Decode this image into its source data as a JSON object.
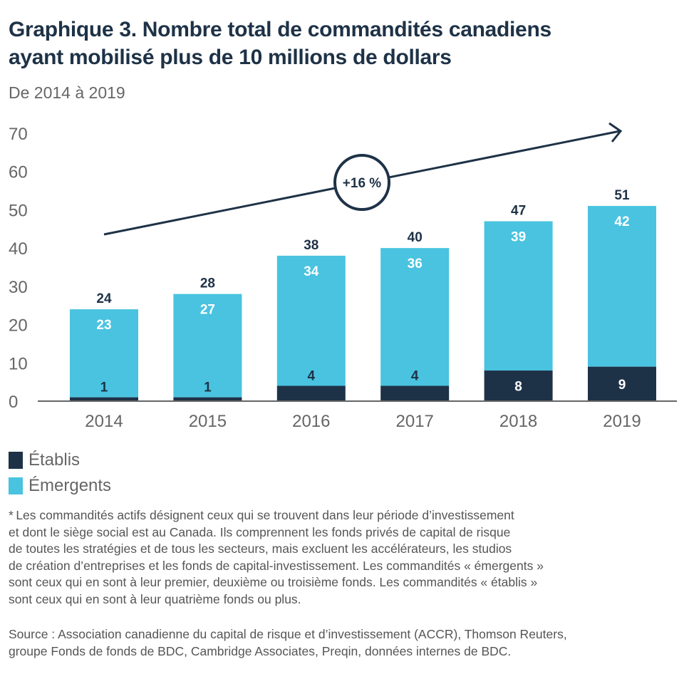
{
  "header": {
    "title_lines": [
      "Graphique 3. Nombre total de commandités canadiens",
      "ayant mobilisé plus de 10 millions de dollars"
    ],
    "subtitle": "De 2014 à 2019"
  },
  "colors": {
    "etablis": "#1e3247",
    "emergents": "#49c3e0",
    "axis_text": "#666666",
    "total_label": "#1e3247",
    "arrow": "#1e3247"
  },
  "chart_data": {
    "type": "bar",
    "stacked": true,
    "title": "Graphique 3. Nombre total de commandités canadiens ayant mobilisé plus de 10 millions de dollars",
    "subtitle": "De 2014 à 2019",
    "xlabel": "",
    "ylabel": "",
    "ylim": [
      0,
      70
    ],
    "yticks": [
      0,
      10,
      20,
      30,
      40,
      50,
      60,
      70
    ],
    "grid": false,
    "categories": [
      "2014",
      "2015",
      "2016",
      "2017",
      "2018",
      "2019"
    ],
    "series": [
      {
        "name": "Établis",
        "values": [
          1,
          1,
          4,
          4,
          8,
          9
        ]
      },
      {
        "name": "Émergents",
        "values": [
          23,
          27,
          34,
          36,
          39,
          42
        ]
      }
    ],
    "totals": [
      24,
      28,
      38,
      40,
      47,
      51
    ],
    "annotation": {
      "text": "+16 %",
      "type": "trend-arrow"
    },
    "legend_position": "bottom-left"
  },
  "legend": {
    "items": [
      {
        "label": "Établis"
      },
      {
        "label": "Émergents"
      }
    ]
  },
  "footnote_lines": [
    "* Les commandités actifs désignent ceux qui se trouvent dans leur période d’investissement",
    "et dont le siège social est au Canada. Ils comprennent les fonds privés de capital de risque",
    "de toutes les stratégies et de tous les secteurs, mais excluent les accélérateurs, les studios",
    "de création d’entreprises et les fonds de capital-investissement. Les commandités « émergents »",
    "sont ceux qui en sont à leur premier, deuxième ou troisième fonds. Les commandités « établis »",
    "sont ceux qui en sont à leur quatrième fonds ou plus."
  ],
  "source_lines": [
    "Source : Association canadienne du capital de risque et d’investissement (ACCR), Thomson Reuters,",
    "groupe Fonds de fonds de BDC, Cambridge Associates, Preqin, données internes de BDC."
  ]
}
